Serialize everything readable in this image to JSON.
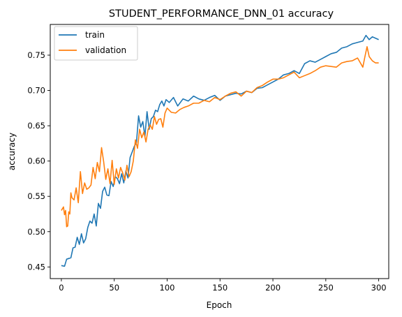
{
  "chart_data": {
    "type": "line",
    "title": "STUDENT_PERFORMANCE_DNN_01 accuracy",
    "xlabel": "Epoch",
    "ylabel": "accuracy",
    "xlim": [
      -10.5,
      309.5
    ],
    "ylim": [
      0.4335,
      0.7935
    ],
    "x_ticks": [
      0,
      50,
      100,
      150,
      200,
      250,
      300
    ],
    "y_ticks": [
      0.45,
      0.5,
      0.55,
      0.6,
      0.65,
      0.7,
      0.75
    ],
    "grid": false,
    "legend_position": "upper-left",
    "series": [
      {
        "name": "train",
        "color": "#1f77b4",
        "x": [
          0,
          3,
          5,
          7,
          9,
          11,
          13,
          15,
          17,
          19,
          21,
          23,
          25,
          27,
          29,
          31,
          33,
          35,
          37,
          39,
          41,
          43,
          45,
          47,
          49,
          51,
          53,
          55,
          57,
          59,
          61,
          63,
          65,
          67,
          69,
          71,
          73,
          75,
          77,
          79,
          81,
          83,
          85,
          87,
          89,
          91,
          93,
          95,
          97,
          99,
          102,
          106,
          110,
          115,
          120,
          125,
          130,
          135,
          140,
          145,
          150,
          155,
          160,
          165,
          170,
          175,
          180,
          185,
          190,
          195,
          200,
          205,
          210,
          215,
          220,
          225,
          230,
          235,
          240,
          245,
          250,
          255,
          260,
          265,
          270,
          275,
          280,
          285,
          288,
          291,
          294,
          297,
          300
        ],
        "values": [
          0.452,
          0.451,
          0.461,
          0.462,
          0.463,
          0.477,
          0.478,
          0.492,
          0.482,
          0.497,
          0.484,
          0.49,
          0.506,
          0.515,
          0.512,
          0.525,
          0.508,
          0.54,
          0.533,
          0.557,
          0.563,
          0.552,
          0.551,
          0.571,
          0.564,
          0.578,
          0.575,
          0.568,
          0.582,
          0.569,
          0.586,
          0.576,
          0.605,
          0.613,
          0.621,
          0.626,
          0.664,
          0.648,
          0.656,
          0.635,
          0.67,
          0.645,
          0.66,
          0.663,
          0.672,
          0.67,
          0.68,
          0.685,
          0.678,
          0.687,
          0.683,
          0.69,
          0.678,
          0.688,
          0.685,
          0.692,
          0.688,
          0.686,
          0.69,
          0.693,
          0.686,
          0.692,
          0.694,
          0.696,
          0.695,
          0.699,
          0.697,
          0.703,
          0.704,
          0.708,
          0.712,
          0.716,
          0.722,
          0.724,
          0.728,
          0.724,
          0.738,
          0.742,
          0.74,
          0.744,
          0.748,
          0.752,
          0.754,
          0.76,
          0.762,
          0.766,
          0.768,
          0.77,
          0.778,
          0.772,
          0.776,
          0.774,
          0.772
        ]
      },
      {
        "name": "validation",
        "color": "#ff7f0e",
        "x": [
          0,
          2,
          3,
          4,
          5,
          6,
          7,
          8,
          9,
          10,
          12,
          14,
          16,
          18,
          20,
          22,
          24,
          26,
          28,
          30,
          32,
          34,
          36,
          38,
          40,
          42,
          44,
          46,
          48,
          50,
          52,
          54,
          56,
          58,
          60,
          62,
          64,
          66,
          68,
          70,
          72,
          74,
          76,
          78,
          80,
          82,
          84,
          86,
          88,
          90,
          92,
          94,
          96,
          98,
          100,
          104,
          108,
          112,
          116,
          120,
          125,
          130,
          135,
          140,
          145,
          150,
          155,
          160,
          165,
          170,
          175,
          180,
          185,
          190,
          195,
          200,
          205,
          210,
          215,
          220,
          225,
          230,
          235,
          240,
          245,
          250,
          255,
          260,
          265,
          270,
          275,
          280,
          285,
          287,
          289,
          291,
          294,
          297,
          300
        ],
        "values": [
          0.53,
          0.535,
          0.524,
          0.53,
          0.507,
          0.508,
          0.528,
          0.525,
          0.555,
          0.548,
          0.545,
          0.562,
          0.541,
          0.585,
          0.554,
          0.569,
          0.56,
          0.562,
          0.566,
          0.591,
          0.575,
          0.598,
          0.585,
          0.619,
          0.599,
          0.574,
          0.589,
          0.568,
          0.601,
          0.567,
          0.589,
          0.576,
          0.591,
          0.583,
          0.573,
          0.594,
          0.578,
          0.585,
          0.6,
          0.63,
          0.618,
          0.645,
          0.633,
          0.641,
          0.627,
          0.645,
          0.651,
          0.645,
          0.663,
          0.652,
          0.659,
          0.66,
          0.648,
          0.668,
          0.675,
          0.669,
          0.668,
          0.673,
          0.676,
          0.678,
          0.682,
          0.682,
          0.686,
          0.684,
          0.69,
          0.687,
          0.692,
          0.696,
          0.698,
          0.692,
          0.699,
          0.697,
          0.704,
          0.707,
          0.712,
          0.716,
          0.716,
          0.718,
          0.722,
          0.726,
          0.718,
          0.721,
          0.724,
          0.728,
          0.733,
          0.735,
          0.734,
          0.733,
          0.739,
          0.741,
          0.742,
          0.746,
          0.733,
          0.748,
          0.762,
          0.748,
          0.742,
          0.739,
          0.739
        ]
      }
    ]
  }
}
